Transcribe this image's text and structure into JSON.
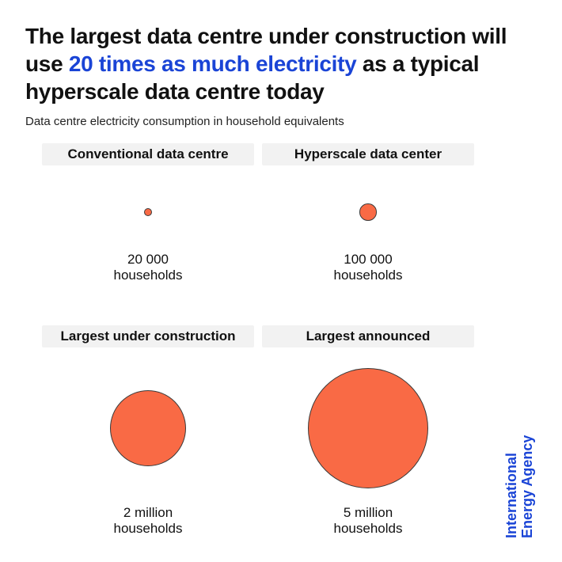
{
  "headline": {
    "before": "The largest data centre under construction will use ",
    "highlight": "20 times as much electricity",
    "after": " as a typical hyperscale data centre today",
    "highlight_color": "#1a44d6"
  },
  "subtitle": "Data centre electricity consumption in household equivalents",
  "chart_data": {
    "type": "bubble",
    "unit": "households",
    "bubble_color": "#f96a45",
    "items": [
      {
        "name": "Conventional data centre",
        "value": 20000,
        "value_text": "20 000",
        "unit_text": "households"
      },
      {
        "name": "Hyperscale data center",
        "value": 100000,
        "value_text": "100 000",
        "unit_text": "households"
      },
      {
        "name": "Largest under construction",
        "value": 2000000,
        "value_text": "2 million",
        "unit_text": "households"
      },
      {
        "name": "Largest announced",
        "value": 5000000,
        "value_text": "5 million",
        "unit_text": "households"
      }
    ]
  },
  "source": {
    "line1": "International",
    "line2": "Energy Agency"
  }
}
